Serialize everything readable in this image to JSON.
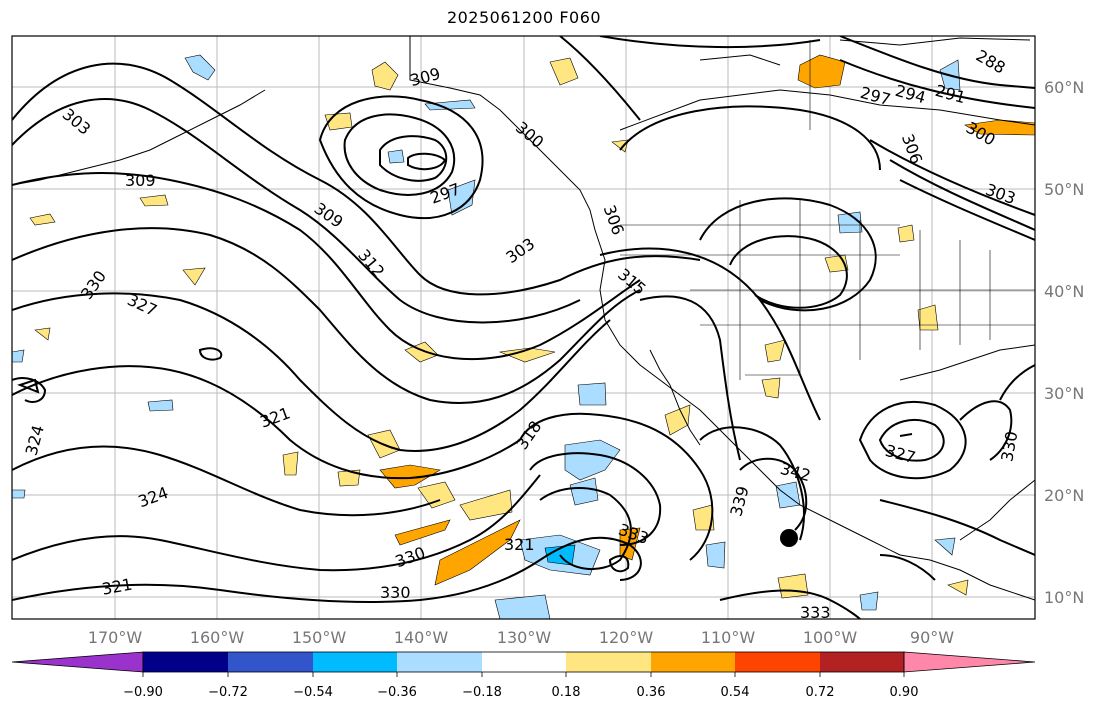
{
  "title": "2025061200 F060",
  "colors": {
    "neg_strong_purple": "#9933cc",
    "neg_navy": "#000088",
    "neg_royal": "#3355cc",
    "neg_sky": "#00bbff",
    "neg_light": "#aaddff",
    "neutral": "#ffffff",
    "pos_yellow": "#ffe680",
    "pos_orange": "#ffa500",
    "pos_redorange": "#ff4400",
    "pos_firebrick": "#b22222",
    "pos_pink": "#ff88aa",
    "contour": "#000000",
    "grid": "#bbbbbb",
    "coast": "#000000"
  },
  "lat_labels": [
    "60°N",
    "50°N",
    "40°N",
    "30°N",
    "20°N",
    "10°N"
  ],
  "lon_labels": [
    "170°W",
    "160°W",
    "150°W",
    "140°W",
    "130°W",
    "120°W",
    "110°W",
    "100°W",
    "90°W"
  ],
  "colorbar": {
    "tick_labels": [
      "−0.90",
      "−0.72",
      "−0.54",
      "−0.36",
      "−0.18",
      "0.18",
      "0.36",
      "0.54",
      "0.72",
      "0.90"
    ]
  },
  "contour_labels": [
    "303",
    "309",
    "330",
    "327",
    "324",
    "321",
    "324",
    "330",
    "309",
    "312",
    "297",
    "303",
    "300",
    "306",
    "315",
    "318",
    "321",
    "333",
    "339",
    "342",
    "327",
    "330",
    "333",
    "297",
    "294",
    "291",
    "288",
    "306",
    "303",
    "300"
  ]
}
